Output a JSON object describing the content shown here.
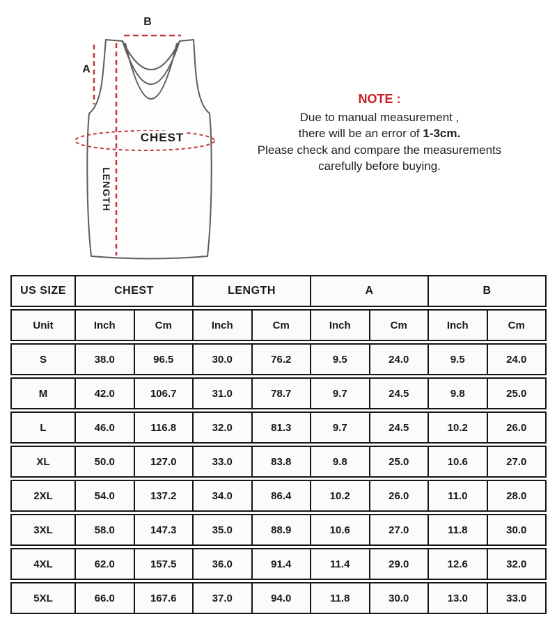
{
  "diagram": {
    "label_b": "B",
    "label_a": "A",
    "label_chest": "CHEST",
    "label_length": "LENGTH",
    "dash_color": "#c2383c",
    "outline_color": "#5c5c5c"
  },
  "note": {
    "title": "NOTE :",
    "title_color": "#cb1f26",
    "line1": "Due to manual measurement ,",
    "line2_prefix": "there will be an error of ",
    "line2_bold": "1-3cm.",
    "line3": "Please check and compare the measurements",
    "line4": "carefully before buying."
  },
  "table": {
    "header": {
      "size": "US SIZE",
      "chest": "CHEST",
      "length": "LENGTH",
      "a": "A",
      "b": "B"
    },
    "subheader": {
      "unit": "Unit",
      "inch": "Inch",
      "cm": "Cm"
    },
    "rows": [
      {
        "size": "S",
        "values": [
          "38.0",
          "96.5",
          "30.0",
          "76.2",
          "9.5",
          "24.0",
          "9.5",
          "24.0"
        ]
      },
      {
        "size": "M",
        "values": [
          "42.0",
          "106.7",
          "31.0",
          "78.7",
          "9.7",
          "24.5",
          "9.8",
          "25.0"
        ]
      },
      {
        "size": "L",
        "values": [
          "46.0",
          "116.8",
          "32.0",
          "81.3",
          "9.7",
          "24.5",
          "10.2",
          "26.0"
        ]
      },
      {
        "size": "XL",
        "values": [
          "50.0",
          "127.0",
          "33.0",
          "83.8",
          "9.8",
          "25.0",
          "10.6",
          "27.0"
        ]
      },
      {
        "size": "2XL",
        "values": [
          "54.0",
          "137.2",
          "34.0",
          "86.4",
          "10.2",
          "26.0",
          "11.0",
          "28.0"
        ]
      },
      {
        "size": "3XL",
        "values": [
          "58.0",
          "147.3",
          "35.0",
          "88.9",
          "10.6",
          "27.0",
          "11.8",
          "30.0"
        ]
      },
      {
        "size": "4XL",
        "values": [
          "62.0",
          "157.5",
          "36.0",
          "91.4",
          "11.4",
          "29.0",
          "12.6",
          "32.0"
        ]
      },
      {
        "size": "5XL",
        "values": [
          "66.0",
          "167.6",
          "37.0",
          "94.0",
          "11.8",
          "30.0",
          "13.0",
          "33.0"
        ]
      }
    ]
  }
}
